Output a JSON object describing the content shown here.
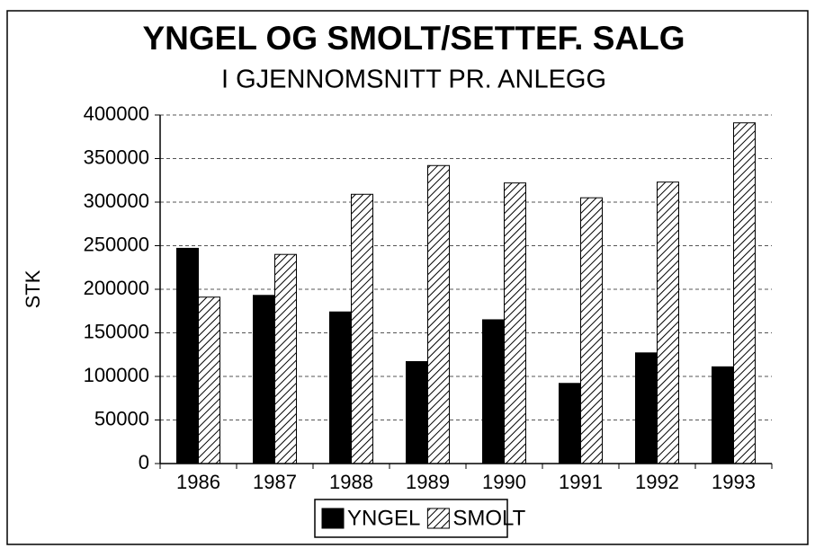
{
  "chart_data": {
    "type": "bar",
    "title": "YNGEL OG SMOLT/SETTEF. SALG",
    "subtitle": "I GJENNOMSNITT PR. ANLEGG",
    "ylabel": "STK",
    "categories": [
      "1986",
      "1987",
      "1988",
      "1989",
      "1990",
      "1991",
      "1992",
      "1993"
    ],
    "series": [
      {
        "name": "YNGEL",
        "color": "#000000",
        "pattern": "solid",
        "values": [
          247000,
          193000,
          174000,
          117000,
          165000,
          92000,
          127000,
          111000
        ]
      },
      {
        "name": "SMOLT",
        "color": "#000000",
        "pattern": "hatch",
        "values": [
          191000,
          240000,
          309000,
          342000,
          322000,
          305000,
          323000,
          391000
        ]
      }
    ],
    "ylim": [
      0,
      400000
    ],
    "yticks": [
      0,
      50000,
      100000,
      150000,
      200000,
      250000,
      300000,
      350000,
      400000
    ],
    "grid": true,
    "legend": "bottom"
  }
}
